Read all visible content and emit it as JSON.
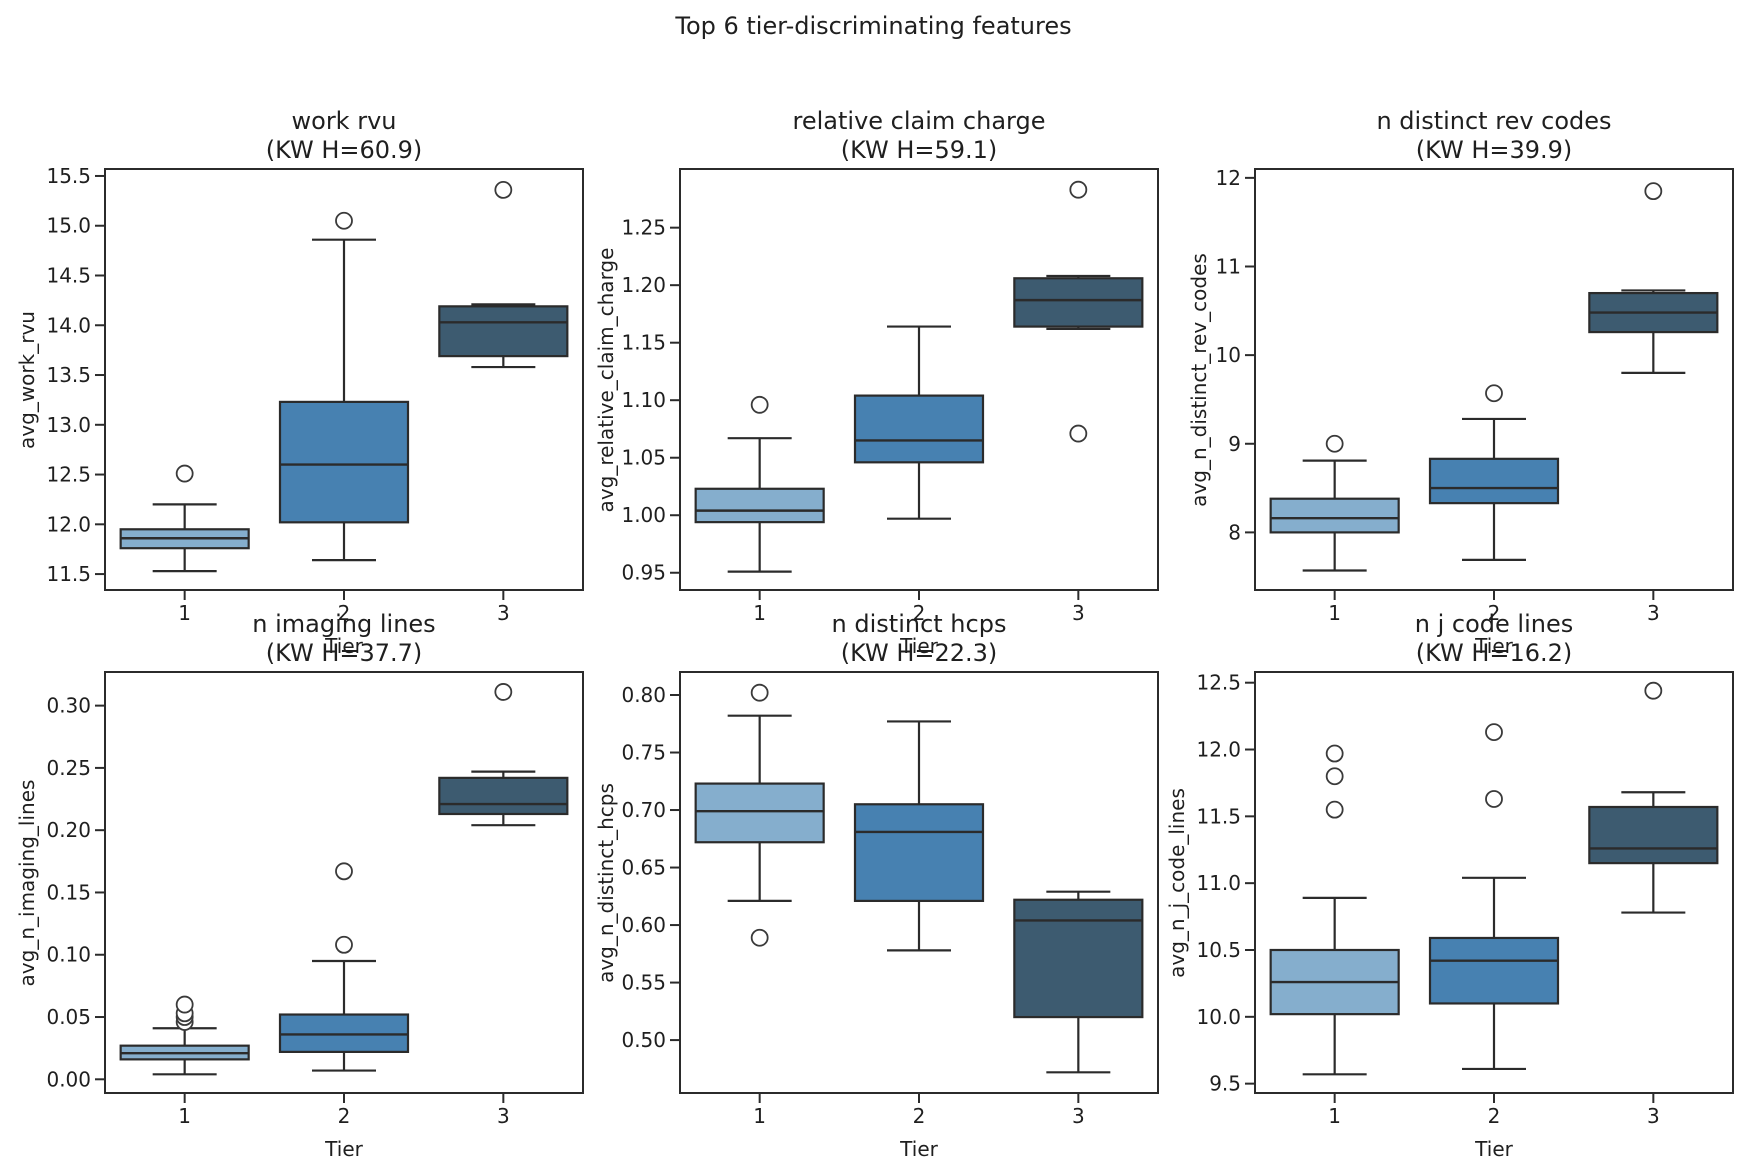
{
  "figure": {
    "suptitle": "Top 6 tier-discriminating features",
    "background": "#ffffff",
    "text_color": "#1f1f1f"
  },
  "palette": {
    "tier_colors": [
      "#85AECD",
      "#4781B1",
      "#3D5B70"
    ],
    "edge_color": "#2b2b2b",
    "outlier_fill": "#ffffff"
  },
  "chart_data": [
    {
      "type": "box",
      "title": "work rvu",
      "subtitle": "(KW H=60.9)",
      "kw_h": 60.9,
      "xlabel": "Tier",
      "ylabel": "avg_work_rvu",
      "categories": [
        "1",
        "2",
        "3"
      ],
      "ylim": [
        11.34,
        15.57
      ],
      "yticks": [
        "11.5",
        "12.0",
        "12.5",
        "13.0",
        "13.5",
        "14.0",
        "14.5",
        "15.0",
        "15.5"
      ],
      "boxes": [
        {
          "tier": "1",
          "whislo": 11.53,
          "q1": 11.76,
          "med": 11.86,
          "q3": 11.95,
          "whishi": 12.2,
          "outliers": [
            12.51
          ]
        },
        {
          "tier": "2",
          "whislo": 11.64,
          "q1": 12.02,
          "med": 12.6,
          "q3": 13.23,
          "whishi": 14.86,
          "outliers": [
            15.05
          ]
        },
        {
          "tier": "3",
          "whislo": 13.58,
          "q1": 13.69,
          "med": 14.03,
          "q3": 14.19,
          "whishi": 14.21,
          "outliers": [
            15.36
          ]
        }
      ]
    },
    {
      "type": "box",
      "title": "relative claim charge",
      "subtitle": "(KW H=59.1)",
      "kw_h": 59.1,
      "xlabel": "Tier",
      "ylabel": "avg_relative_claim_charge",
      "categories": [
        "1",
        "2",
        "3"
      ],
      "ylim": [
        0.935,
        1.301
      ],
      "yticks": [
        "0.95",
        "1.00",
        "1.05",
        "1.10",
        "1.15",
        "1.20",
        "1.25"
      ],
      "boxes": [
        {
          "tier": "1",
          "whislo": 0.951,
          "q1": 0.994,
          "med": 1.004,
          "q3": 1.023,
          "whishi": 1.067,
          "outliers": [
            1.096
          ]
        },
        {
          "tier": "2",
          "whislo": 0.997,
          "q1": 1.046,
          "med": 1.065,
          "q3": 1.104,
          "whishi": 1.164,
          "outliers": []
        },
        {
          "tier": "3",
          "whislo": 1.162,
          "q1": 1.164,
          "med": 1.187,
          "q3": 1.206,
          "whishi": 1.208,
          "outliers": [
            1.283,
            1.071
          ]
        }
      ]
    },
    {
      "type": "box",
      "title": "n distinct rev codes",
      "subtitle": "(KW H=39.9)",
      "kw_h": 39.9,
      "xlabel": "Tier",
      "ylabel": "avg_n_distinct_rev_codes",
      "categories": [
        "1",
        "2",
        "3"
      ],
      "ylim": [
        7.35,
        12.1
      ],
      "yticks": [
        "8",
        "9",
        "10",
        "11",
        "12"
      ],
      "boxes": [
        {
          "tier": "1",
          "whislo": 7.57,
          "q1": 8.0,
          "med": 8.16,
          "q3": 8.38,
          "whishi": 8.81,
          "outliers": [
            9.0
          ]
        },
        {
          "tier": "2",
          "whislo": 7.69,
          "q1": 8.33,
          "med": 8.5,
          "q3": 8.83,
          "whishi": 9.28,
          "outliers": [
            9.57
          ]
        },
        {
          "tier": "3",
          "whislo": 9.8,
          "q1": 10.26,
          "med": 10.48,
          "q3": 10.7,
          "whishi": 10.73,
          "outliers": [
            11.85
          ]
        }
      ]
    },
    {
      "type": "box",
      "title": "n imaging lines",
      "subtitle": "(KW H=37.7)",
      "kw_h": 37.7,
      "xlabel": "Tier",
      "ylabel": "avg_n_imaging_lines",
      "categories": [
        "1",
        "2",
        "3"
      ],
      "ylim": [
        -0.011,
        0.327
      ],
      "yticks": [
        "0.00",
        "0.05",
        "0.10",
        "0.15",
        "0.20",
        "0.25",
        "0.30"
      ],
      "boxes": [
        {
          "tier": "1",
          "whislo": 0.004,
          "q1": 0.016,
          "med": 0.021,
          "q3": 0.027,
          "whishi": 0.041,
          "outliers": [
            0.046,
            0.05,
            0.053,
            0.06
          ]
        },
        {
          "tier": "2",
          "whislo": 0.007,
          "q1": 0.022,
          "med": 0.036,
          "q3": 0.052,
          "whishi": 0.095,
          "outliers": [
            0.108,
            0.167
          ]
        },
        {
          "tier": "3",
          "whislo": 0.204,
          "q1": 0.213,
          "med": 0.221,
          "q3": 0.242,
          "whishi": 0.247,
          "outliers": [
            0.311
          ]
        }
      ]
    },
    {
      "type": "box",
      "title": "n distinct hcps",
      "subtitle": "(KW H=22.3)",
      "kw_h": 22.3,
      "xlabel": "Tier",
      "ylabel": "avg_n_distinct_hcps",
      "categories": [
        "1",
        "2",
        "3"
      ],
      "ylim": [
        0.454,
        0.82
      ],
      "yticks": [
        "0.50",
        "0.55",
        "0.60",
        "0.65",
        "0.70",
        "0.75",
        "0.80"
      ],
      "boxes": [
        {
          "tier": "1",
          "whislo": 0.621,
          "q1": 0.672,
          "med": 0.699,
          "q3": 0.723,
          "whishi": 0.782,
          "outliers": [
            0.802,
            0.589
          ]
        },
        {
          "tier": "2",
          "whislo": 0.578,
          "q1": 0.621,
          "med": 0.681,
          "q3": 0.705,
          "whishi": 0.777,
          "outliers": []
        },
        {
          "tier": "3",
          "whislo": 0.472,
          "q1": 0.52,
          "med": 0.604,
          "q3": 0.622,
          "whishi": 0.629,
          "outliers": []
        }
      ]
    },
    {
      "type": "box",
      "title": "n j code lines",
      "subtitle": "(KW H=16.2)",
      "kw_h": 16.2,
      "xlabel": "Tier",
      "ylabel": "avg_n_j_code_lines",
      "categories": [
        "1",
        "2",
        "3"
      ],
      "ylim": [
        9.43,
        12.58
      ],
      "yticks": [
        "9.5",
        "10.0",
        "10.5",
        "11.0",
        "11.5",
        "12.0",
        "12.5"
      ],
      "boxes": [
        {
          "tier": "1",
          "whislo": 9.57,
          "q1": 10.02,
          "med": 10.26,
          "q3": 10.5,
          "whishi": 10.89,
          "outliers": [
            11.55,
            11.8,
            11.97
          ]
        },
        {
          "tier": "2",
          "whislo": 9.61,
          "q1": 10.1,
          "med": 10.42,
          "q3": 10.59,
          "whishi": 11.04,
          "outliers": [
            11.63,
            12.13
          ]
        },
        {
          "tier": "3",
          "whislo": 10.78,
          "q1": 11.15,
          "med": 11.26,
          "q3": 11.57,
          "whishi": 11.68,
          "outliers": [
            12.44
          ]
        }
      ]
    }
  ]
}
